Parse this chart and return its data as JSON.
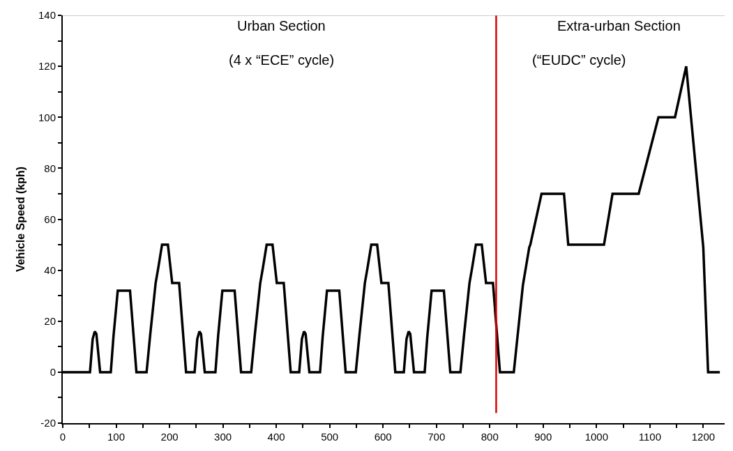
{
  "chart_data": {
    "type": "line",
    "ylabel": "Vehicle Speed (kph)",
    "x": [
      0,
      51,
      56,
      60,
      63,
      70,
      90,
      95,
      103,
      126,
      138,
      157,
      164,
      174,
      179,
      186,
      197,
      205,
      218,
      231,
      247,
      252,
      256,
      259,
      266,
      286,
      291,
      299,
      322,
      334,
      353,
      360,
      370,
      375,
      382,
      393,
      401,
      414,
      427,
      443,
      448,
      452,
      455,
      462,
      482,
      487,
      495,
      518,
      530,
      549,
      556,
      566,
      571,
      578,
      589,
      597,
      610,
      623,
      639,
      644,
      648,
      651,
      658,
      678,
      683,
      691,
      714,
      726,
      745,
      752,
      762,
      767,
      774,
      785,
      793,
      806,
      819,
      845,
      852,
      862,
      874,
      876,
      897,
      939,
      947,
      1014,
      1030,
      1079,
      1116,
      1147,
      1168,
      1200,
      1209,
      1231
    ],
    "values": [
      0,
      0,
      13,
      16,
      15,
      0,
      0,
      14,
      32,
      32,
      0,
      0,
      15,
      35,
      41,
      50,
      50,
      35,
      35,
      0,
      0,
      13,
      16,
      15,
      0,
      0,
      14,
      32,
      32,
      0,
      0,
      15,
      35,
      41,
      50,
      50,
      35,
      35,
      0,
      0,
      13,
      16,
      15,
      0,
      0,
      14,
      32,
      32,
      0,
      0,
      15,
      35,
      41,
      50,
      50,
      35,
      35,
      0,
      0,
      13,
      16,
      15,
      0,
      0,
      14,
      32,
      32,
      0,
      0,
      15,
      35,
      41,
      50,
      50,
      35,
      35,
      0,
      0,
      14,
      34,
      49,
      50,
      70,
      70,
      50,
      50,
      70,
      70,
      100,
      100,
      120,
      49,
      0,
      0
    ],
    "color": "#000000",
    "line_style": "solid",
    "marker": "none",
    "xlim": [
      0,
      1240
    ],
    "ylim": [
      -20,
      140
    ],
    "xticks": [
      0,
      {
        "value": 50,
        "label": null
      },
      100,
      {
        "value": 150,
        "label": null
      },
      200,
      {
        "value": 250,
        "label": null
      },
      300,
      {
        "value": 350,
        "label": null
      },
      400,
      {
        "value": 450,
        "label": null
      },
      500,
      {
        "value": 550,
        "label": null
      },
      600,
      {
        "value": 650,
        "label": null
      },
      700,
      {
        "value": 750,
        "label": null
      },
      800,
      {
        "value": 850,
        "label": null
      },
      900,
      {
        "value": 950,
        "label": null
      },
      1000,
      {
        "value": 1050,
        "label": null
      },
      1100,
      {
        "value": 1150,
        "label": null
      },
      1200
    ],
    "yticks": [
      -20,
      {
        "value": -10,
        "label": null
      },
      0,
      {
        "value": 10,
        "label": null
      },
      20,
      {
        "value": 30,
        "label": null
      },
      40,
      {
        "value": 50,
        "label": null
      },
      60,
      {
        "value": 70,
        "label": null
      },
      80,
      {
        "value": 90,
        "label": null
      },
      100,
      {
        "value": 110,
        "label": null
      },
      120,
      {
        "value": 130,
        "label": null
      },
      140
    ],
    "ref_lines": [
      {
        "axis": "x",
        "value": 812,
        "color": "#e00000",
        "line_style": "solid"
      }
    ],
    "annotations": [
      "Urban Section",
      "(4 x “ECE” cycle)",
      "Extra-urban Section",
      "(“EUDC” cycle)"
    ]
  }
}
